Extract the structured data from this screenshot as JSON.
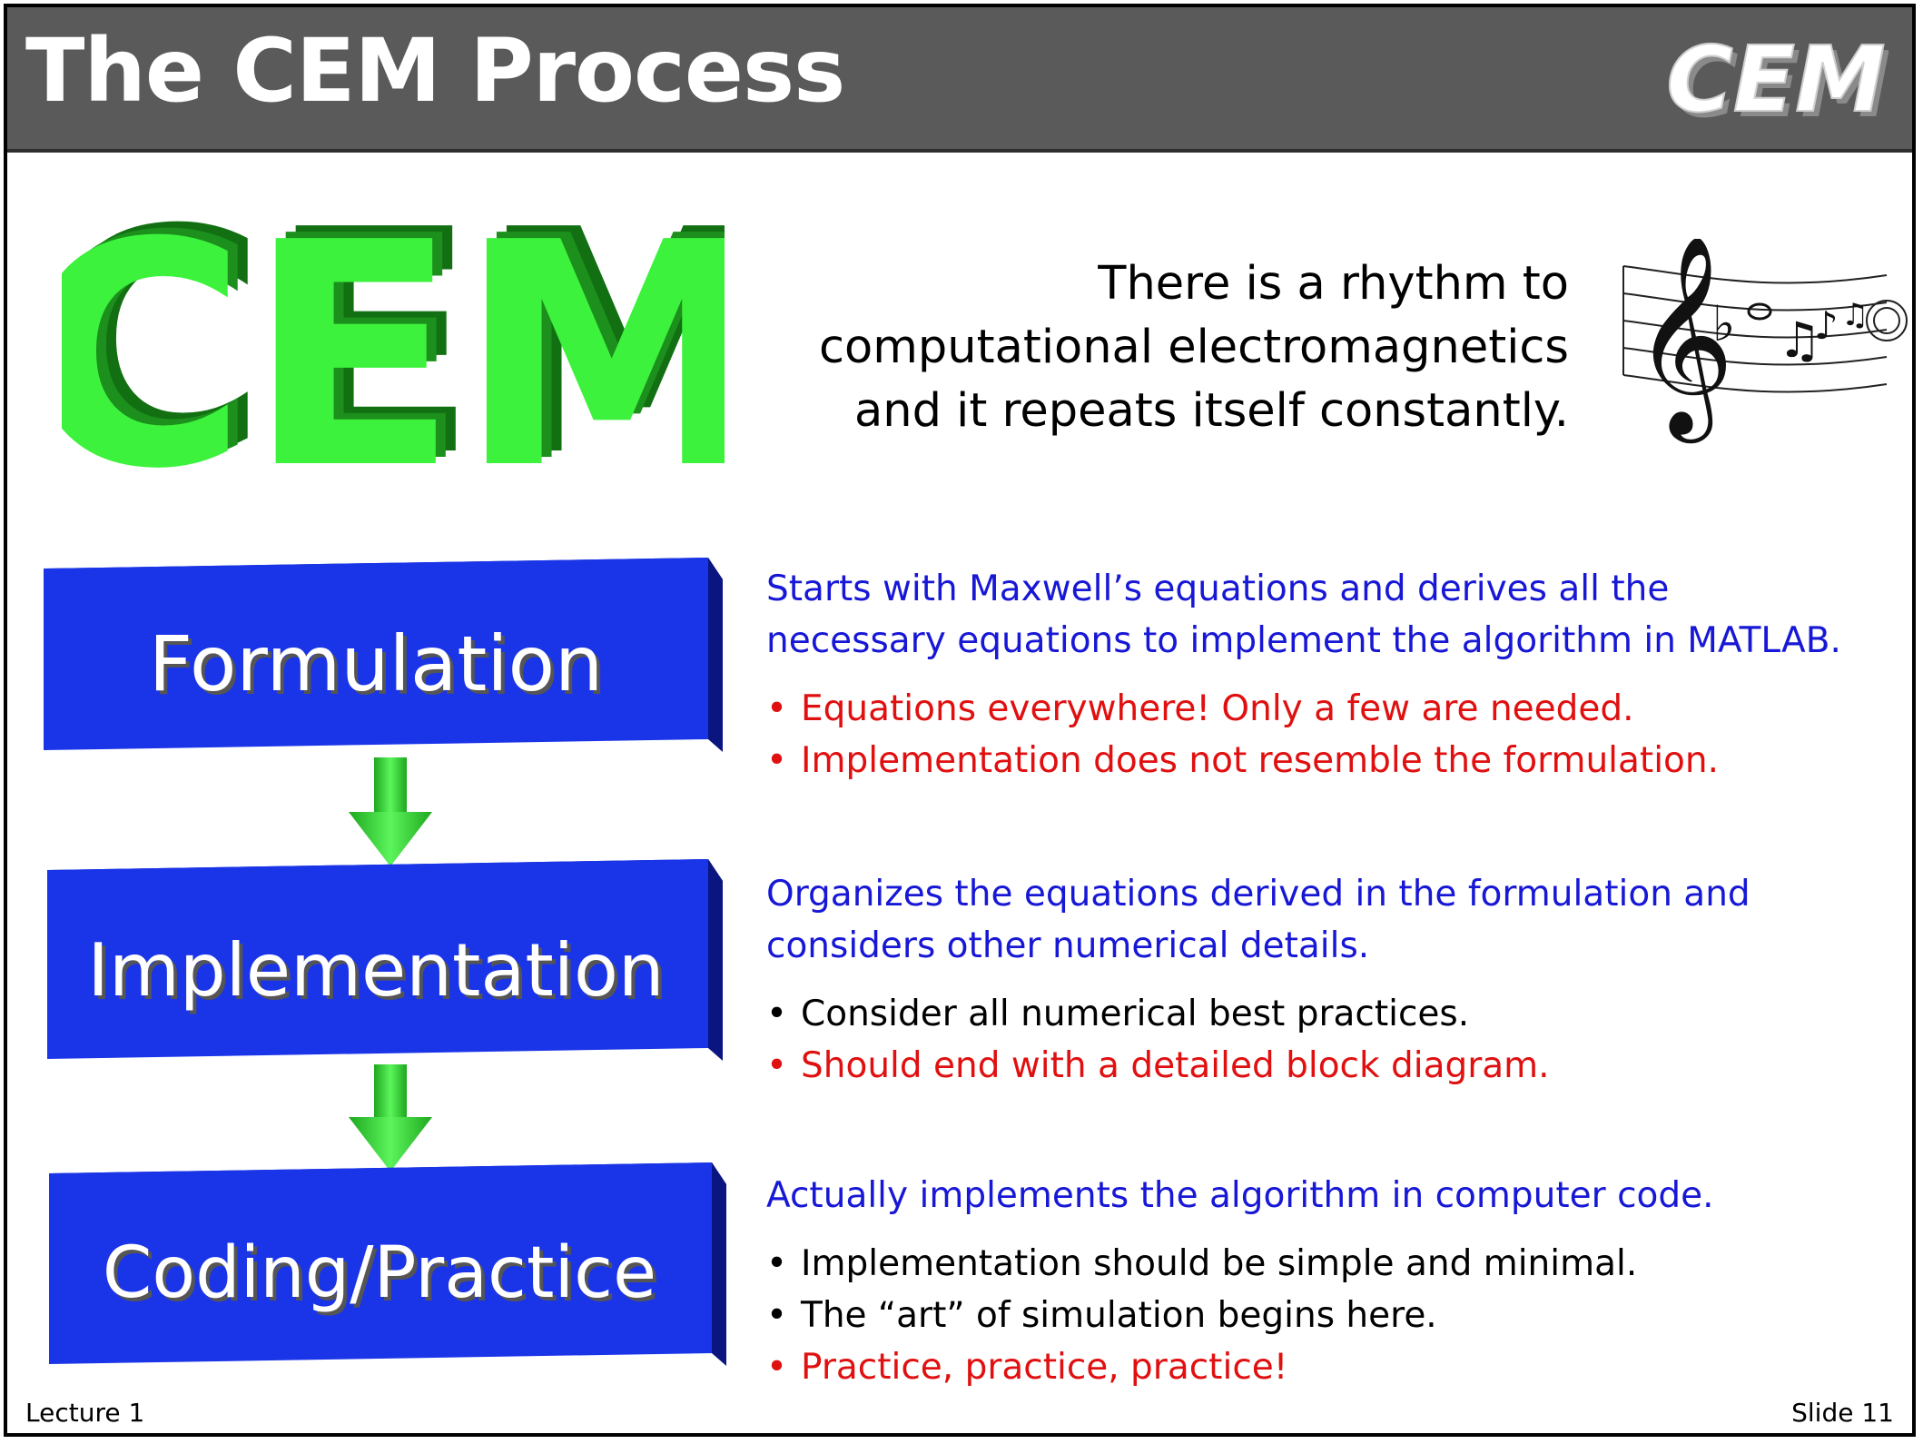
{
  "header": {
    "title": "The CEM Process",
    "logo_text": "CEM"
  },
  "logo": {
    "text": "CEM",
    "color": "#3cf23c",
    "shadow_color": "#1a7a1a"
  },
  "rhythm": {
    "lines": [
      "There is a rhythm to",
      "computational electromagnetics",
      "and it repeats itself constantly."
    ],
    "icon": "music-staff-icon"
  },
  "flow": {
    "box_color": "#1a35e8",
    "arrow_color": "#3be43b",
    "steps": [
      {
        "label": "Formulation"
      },
      {
        "label": "Implementation"
      },
      {
        "label": "Coding/Practice"
      }
    ]
  },
  "descriptions": [
    {
      "lead": "Starts with Maxwell’s equations and derives all the necessary equations to implement the algorithm in MATLAB.",
      "bullets": [
        {
          "text": "Equations everywhere!  Only a few are needed.",
          "color": "red"
        },
        {
          "text": "Implementation does not resemble the formulation.",
          "color": "red"
        }
      ]
    },
    {
      "lead": "Organizes the equations derived in the formulation and considers other numerical details.",
      "bullets": [
        {
          "text": "Consider all numerical best practices.",
          "color": "black"
        },
        {
          "text": "Should end with a detailed block diagram.",
          "color": "red"
        }
      ]
    },
    {
      "lead": "Actually implements the algorithm in computer code.",
      "bullets": [
        {
          "text": "Implementation should be simple and minimal.",
          "color": "black"
        },
        {
          "text": "The “art” of simulation begins here.",
          "color": "black"
        },
        {
          "text": "Practice, practice, practice!",
          "color": "red"
        }
      ]
    }
  ],
  "footer": {
    "lecture": "Lecture 1",
    "slide": "Slide 11"
  }
}
